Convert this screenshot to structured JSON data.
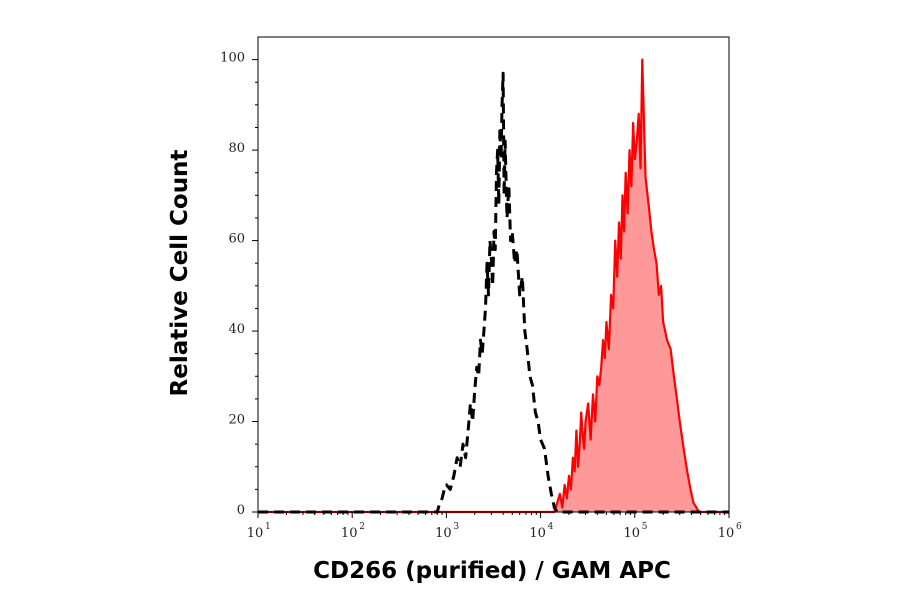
{
  "chart_data": {
    "type": "area",
    "xlabel": "CD266 (purified) / GAM APC",
    "ylabel": "Relative Cell Count",
    "x_scale": "log",
    "xlim": [
      10,
      1000000
    ],
    "ylim": [
      0,
      105
    ],
    "grid": false,
    "x_ticks": [
      {
        "value": 10,
        "base": "10",
        "exp": "1"
      },
      {
        "value": 100,
        "base": "10",
        "exp": "2"
      },
      {
        "value": 1000,
        "base": "10",
        "exp": "3"
      },
      {
        "value": 10000,
        "base": "10",
        "exp": "4"
      },
      {
        "value": 100000,
        "base": "10",
        "exp": "5"
      },
      {
        "value": 1000000,
        "base": "10",
        "exp": "6"
      }
    ],
    "y_ticks": [
      {
        "value": 0,
        "label": "0"
      },
      {
        "value": 20,
        "label": "20"
      },
      {
        "value": 40,
        "label": "40"
      },
      {
        "value": 60,
        "label": "60"
      },
      {
        "value": 80,
        "label": "80"
      },
      {
        "value": 100,
        "label": "100"
      }
    ],
    "series": [
      {
        "style": "dashed",
        "color": "#000000",
        "fill": "none",
        "x": [
          10,
          800,
          850,
          900,
          950,
          1000,
          1100,
          1200,
          1300,
          1400,
          1500,
          1600,
          1700,
          1800,
          1900,
          2000,
          2100,
          2200,
          2300,
          2400,
          2500,
          2600,
          2700,
          2800,
          2900,
          3000,
          3100,
          3200,
          3300,
          3400,
          3500,
          3600,
          3700,
          3800,
          3900,
          4000,
          4100,
          4200,
          4400,
          4600,
          4800,
          5000,
          5300,
          5600,
          6000,
          6400,
          6800,
          7200,
          7700,
          8200,
          8800,
          9400,
          10000,
          11000,
          12000,
          13000,
          14000,
          15000,
          1000000
        ],
        "y": [
          0,
          0,
          2,
          3,
          5,
          6,
          5,
          8,
          12,
          10,
          15,
          12,
          18,
          24,
          20,
          27,
          32,
          30,
          38,
          35,
          40,
          45,
          55,
          48,
          60,
          56,
          50,
          62,
          58,
          75,
          80,
          68,
          85,
          78,
          90,
          97,
          70,
          82,
          65,
          72,
          60,
          62,
          55,
          58,
          48,
          52,
          40,
          36,
          30,
          28,
          22,
          20,
          16,
          14,
          8,
          4,
          1,
          0,
          0
        ]
      },
      {
        "style": "solid",
        "color": "#ff0000",
        "fill": "#ff9999",
        "x": [
          10,
          14000,
          15000,
          16000,
          17000,
          18000,
          19000,
          20000,
          21000,
          22000,
          23000,
          24000,
          25000,
          26000,
          27000,
          28000,
          29000,
          30000,
          32000,
          34000,
          36000,
          38000,
          40000,
          42000,
          44000,
          46000,
          48000,
          50000,
          53000,
          56000,
          59000,
          62000,
          65000,
          68000,
          71000,
          74000,
          77000,
          80000,
          84000,
          88000,
          92000,
          96000,
          100000,
          105000,
          110000,
          115000,
          120000,
          130000,
          140000,
          150000,
          160000,
          170000,
          180000,
          190000,
          200000,
          220000,
          240000,
          260000,
          280000,
          300000,
          330000,
          360000,
          390000,
          420000,
          450000,
          480000,
          1000000
        ],
        "y": [
          0,
          0,
          2,
          4,
          1,
          6,
          3,
          8,
          5,
          12,
          9,
          18,
          10,
          15,
          22,
          17,
          14,
          20,
          24,
          16,
          26,
          20,
          30,
          28,
          32,
          38,
          34,
          42,
          36,
          48,
          45,
          60,
          52,
          64,
          56,
          70,
          62,
          75,
          66,
          80,
          72,
          86,
          78,
          82,
          88,
          76,
          100,
          74,
          68,
          62,
          58,
          55,
          48,
          50,
          42,
          38,
          36,
          30,
          25,
          20,
          14,
          9,
          5,
          2,
          1,
          0,
          0
        ]
      }
    ]
  }
}
